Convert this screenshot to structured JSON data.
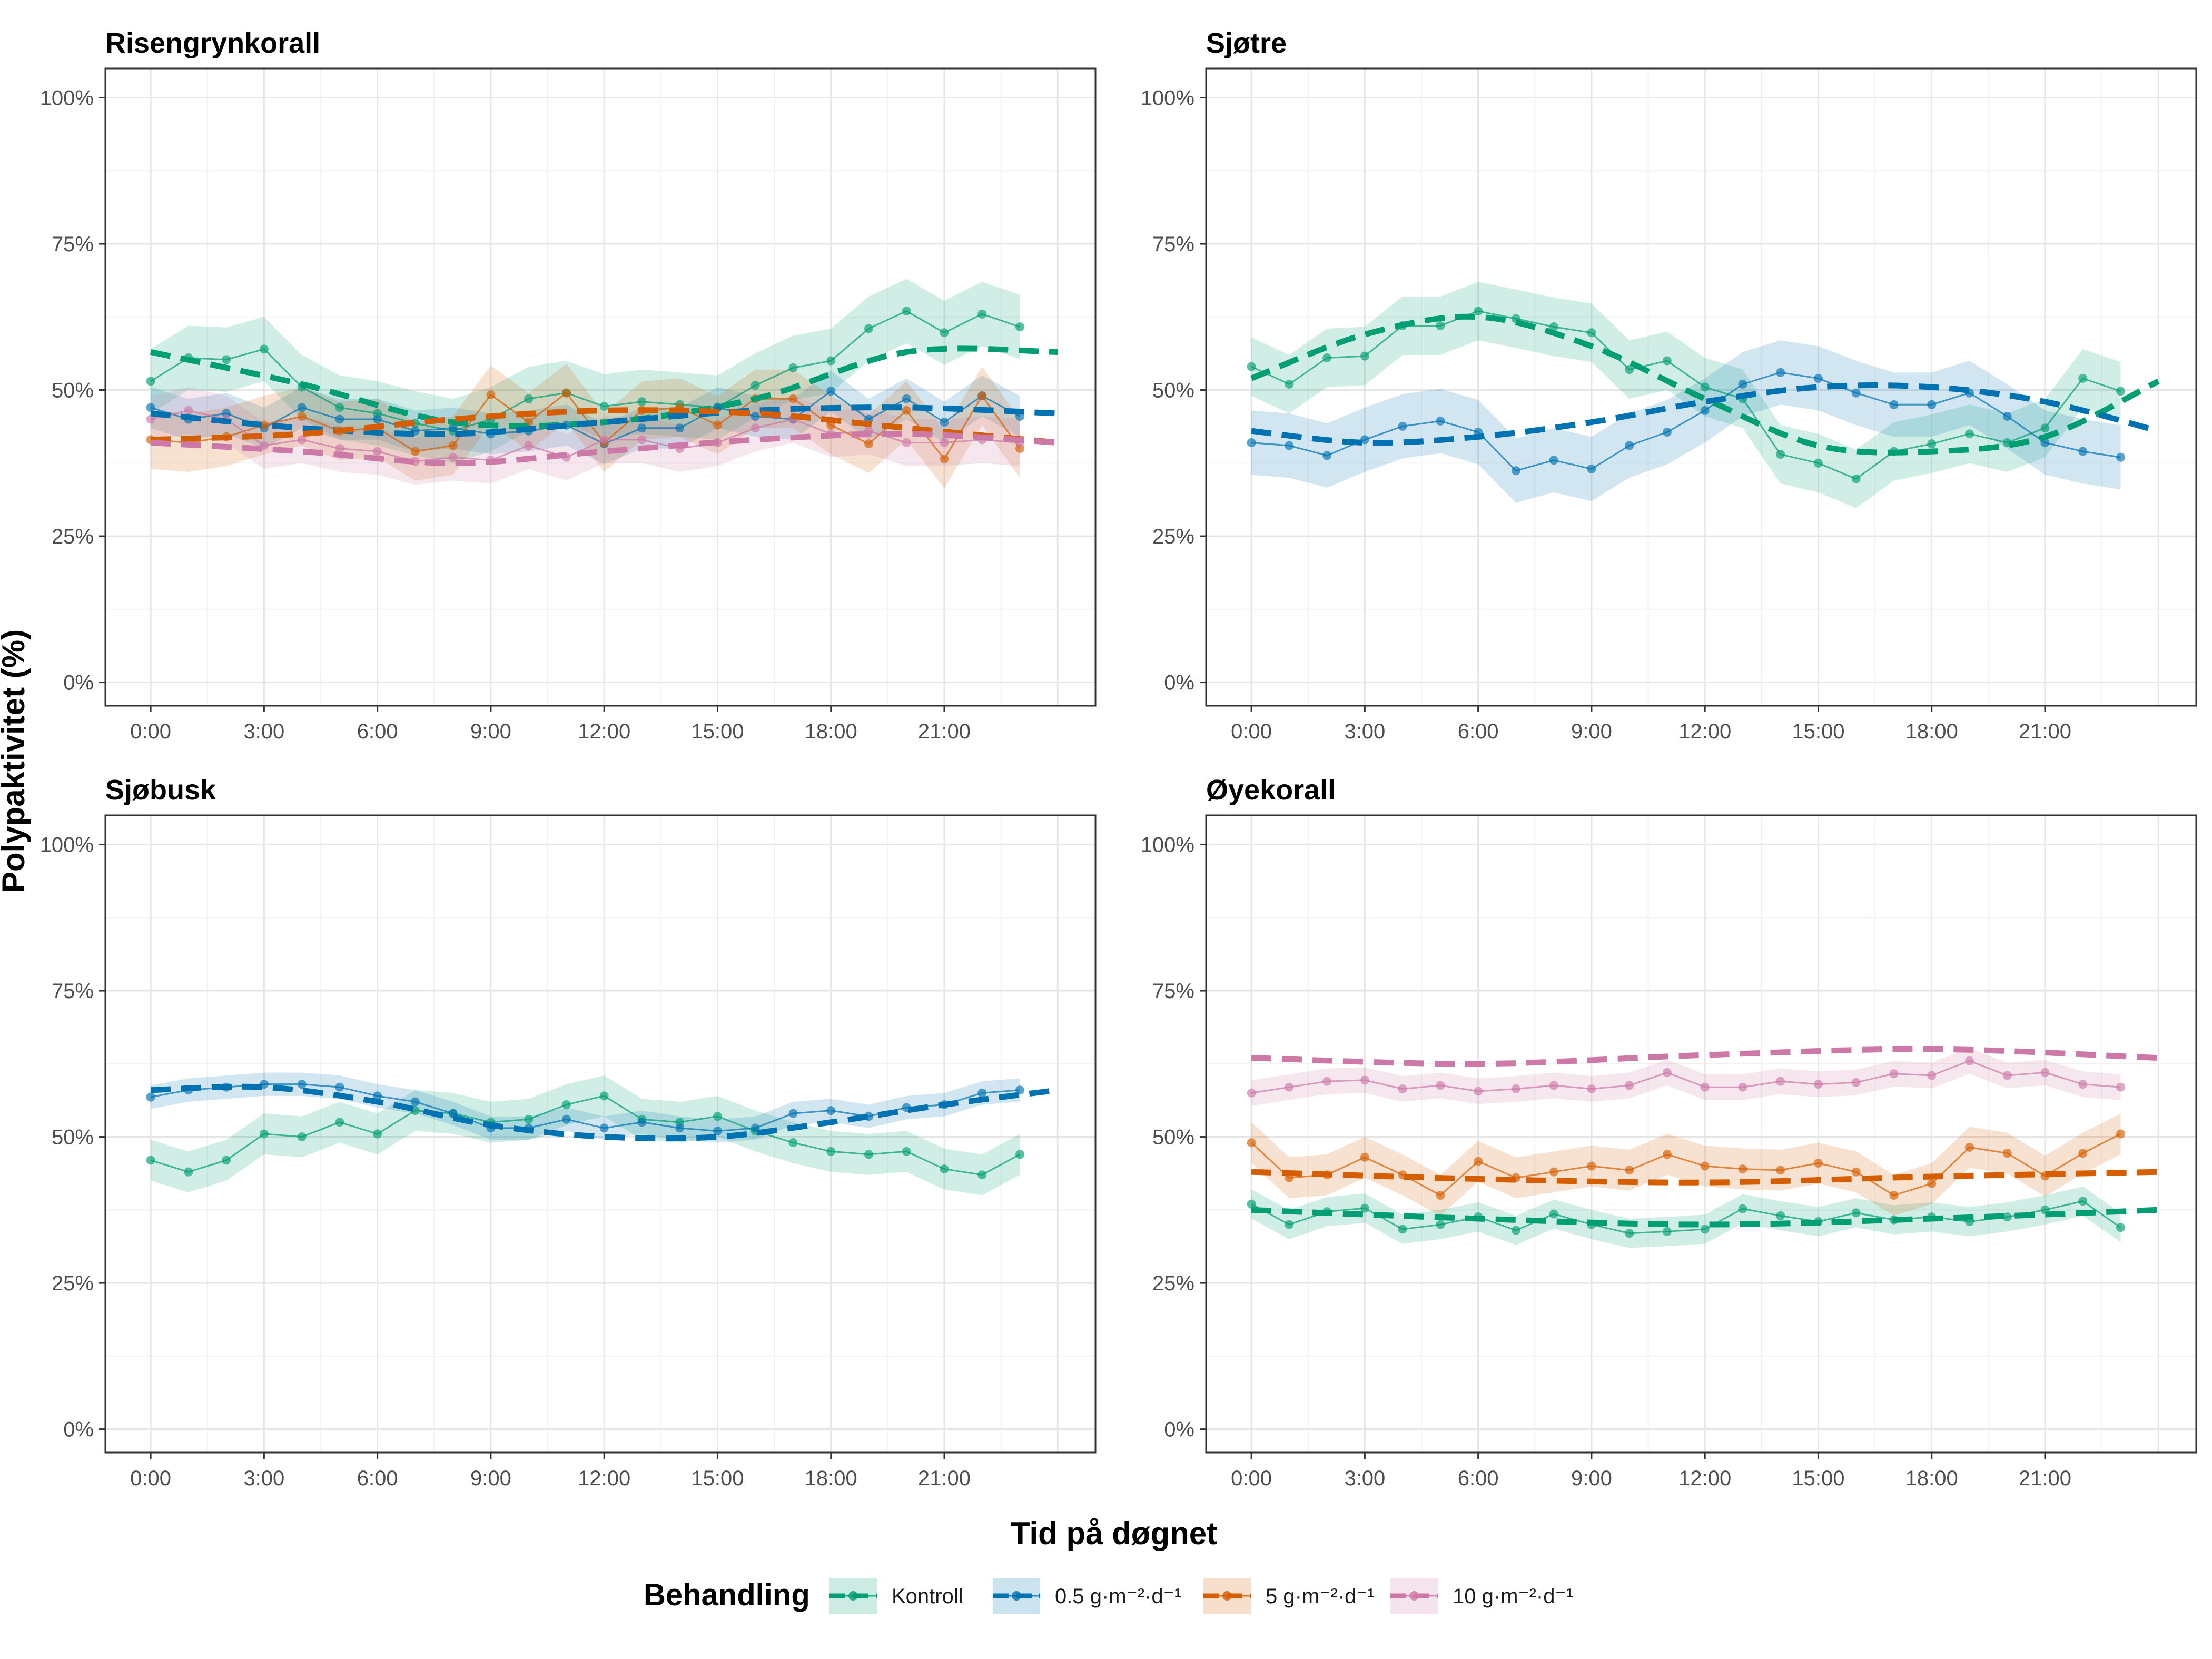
{
  "figure": {
    "x_axis_title": "Tid på døgnet",
    "y_axis_title": "Polypaktivitet (%)"
  },
  "legend": {
    "title": "Behandling",
    "items": [
      {
        "key": "kontroll",
        "label": "Kontroll",
        "color": "#009E73"
      },
      {
        "key": "t05",
        "label": "0.5 g·m⁻²·d⁻¹",
        "color": "#0072B2"
      },
      {
        "key": "t5",
        "label": "5 g·m⁻²·d⁻¹",
        "color": "#D55E00"
      },
      {
        "key": "t10",
        "label": "10 g·m⁻²·d⁻¹",
        "color": "#CC79A7"
      }
    ]
  },
  "chart_data": [
    {
      "type": "line",
      "title": "Risengrynkorall",
      "xlabel": "Tid på døgnet",
      "ylabel": "Polypaktivitet (%)",
      "xlim": [
        -1.2,
        25
      ],
      "ylim": [
        -4,
        105
      ],
      "x_ticks": [
        "0:00",
        "3:00",
        "6:00",
        "9:00",
        "12:00",
        "15:00",
        "18:00",
        "21:00"
      ],
      "y_ticks": [
        "0%",
        "25%",
        "50%",
        "75%",
        "100%"
      ],
      "x": [
        0,
        1,
        2,
        3,
        4,
        5,
        6,
        7,
        8,
        9,
        10,
        11,
        12,
        13,
        14,
        15,
        16,
        17,
        18,
        19,
        20,
        21,
        22,
        23
      ],
      "series": [
        {
          "key": "kontroll",
          "name": "Kontroll",
          "values": [
            51.5,
            55.5,
            55.2,
            57,
            50.5,
            47,
            46,
            44.3,
            43,
            45,
            48.5,
            49.5,
            47.2,
            48,
            47.5,
            47,
            50.8,
            53.8,
            55,
            60.5,
            63.5,
            59.8,
            63,
            60.8
          ],
          "band": 5.5,
          "fit_x": [
            0,
            4,
            8,
            12,
            16,
            20,
            24
          ],
          "fit": [
            56.5,
            51,
            44.5,
            44.5,
            48.5,
            56.5,
            56.5
          ]
        },
        {
          "key": "t05",
          "name": "0.5 g·m⁻²·d⁻¹",
          "values": [
            47,
            45,
            46,
            43.5,
            47,
            45,
            45,
            43,
            43.5,
            42.5,
            43,
            44,
            40.8,
            43.5,
            43.5,
            47,
            45.5,
            45,
            49.8,
            45,
            48.5,
            44.5,
            49,
            45.5
          ],
          "band": 3.5,
          "fit_x": [
            0,
            4,
            8,
            12,
            16,
            20,
            24
          ],
          "fit": [
            46,
            43.5,
            42.5,
            44.5,
            46.5,
            47,
            46
          ]
        },
        {
          "key": "t5",
          "name": "5 g·m⁻²·d⁻¹",
          "values": [
            41.5,
            41,
            42,
            44,
            45.5,
            43,
            43.5,
            39.5,
            40.5,
            49.2,
            44.5,
            49.5,
            41,
            46.5,
            47,
            44,
            48.5,
            48.5,
            44,
            40.8,
            46.5,
            38.2,
            49,
            40
          ],
          "band": 5,
          "fit_x": [
            0,
            4,
            8,
            12,
            16,
            20,
            24
          ],
          "fit": [
            41.5,
            42.5,
            45,
            46.5,
            46,
            43.5,
            41
          ]
        },
        {
          "key": "t10",
          "name": "10 g·m⁻²·d⁻¹",
          "values": [
            45,
            46.5,
            45,
            40.5,
            41.5,
            40,
            39.5,
            37.8,
            38.5,
            38,
            40.5,
            38.5,
            41.5,
            41.5,
            40,
            41,
            43.5,
            45,
            42.5,
            43,
            41,
            41,
            41.5,
            41
          ],
          "band": 4,
          "fit_x": [
            0,
            4,
            8,
            12,
            16,
            20,
            24
          ],
          "fit": [
            41,
            39.5,
            37.5,
            39.5,
            41.5,
            42.5,
            41
          ]
        }
      ]
    },
    {
      "type": "line",
      "title": "Sjøtre",
      "xlabel": "Tid på døgnet",
      "ylabel": "Polypaktivitet (%)",
      "xlim": [
        -1.2,
        25
      ],
      "ylim": [
        -4,
        105
      ],
      "x_ticks": [
        "0:00",
        "3:00",
        "6:00",
        "9:00",
        "12:00",
        "15:00",
        "18:00",
        "21:00"
      ],
      "y_ticks": [
        "0%",
        "25%",
        "50%",
        "75%",
        "100%"
      ],
      "x": [
        0,
        1,
        2,
        3,
        4,
        5,
        6,
        7,
        8,
        9,
        10,
        11,
        12,
        13,
        14,
        15,
        16,
        17,
        18,
        19,
        20,
        21,
        22,
        23
      ],
      "series": [
        {
          "key": "kontroll",
          "name": "Kontroll",
          "values": [
            54,
            51,
            55.5,
            55.8,
            61,
            61,
            63.5,
            62.2,
            60.8,
            59.8,
            53.5,
            55,
            50.5,
            48.5,
            39,
            37.5,
            34.8,
            39.5,
            40.8,
            42.5,
            41,
            43.5,
            52,
            49.8
          ],
          "band": 5,
          "fit_x": [
            0,
            3,
            6,
            9,
            12,
            15,
            18,
            21,
            24
          ],
          "fit": [
            52,
            59.5,
            62.5,
            57.5,
            48.5,
            40.5,
            39.5,
            42,
            51.5
          ]
        },
        {
          "key": "t05",
          "name": "0.5 g·m⁻²·d⁻¹",
          "values": [
            41,
            40.5,
            38.8,
            41.5,
            43.8,
            44.7,
            42.8,
            36.2,
            38,
            36.5,
            40.5,
            42.8,
            46.5,
            51,
            53,
            52,
            49.5,
            47.5,
            47.5,
            49.5,
            45.5,
            41,
            39.5,
            38.5
          ],
          "band": 5.5,
          "fit_x": [
            0,
            3,
            6,
            9,
            12,
            15,
            18,
            21,
            24
          ],
          "fit": [
            43,
            41,
            42,
            44.5,
            48,
            50.5,
            50.5,
            48,
            43
          ]
        }
      ]
    },
    {
      "type": "line",
      "title": "Sjøbusk",
      "xlabel": "Tid på døgnet",
      "ylabel": "Polypaktivitet (%)",
      "xlim": [
        -1.2,
        25
      ],
      "ylim": [
        -4,
        105
      ],
      "x_ticks": [
        "0:00",
        "3:00",
        "6:00",
        "9:00",
        "12:00",
        "15:00",
        "18:00",
        "21:00"
      ],
      "y_ticks": [
        "0%",
        "25%",
        "50%",
        "75%",
        "100%"
      ],
      "x": [
        0,
        1,
        2,
        3,
        4,
        5,
        6,
        7,
        8,
        9,
        10,
        11,
        12,
        13,
        14,
        15,
        16,
        17,
        18,
        19,
        20,
        21,
        22,
        23
      ],
      "series": [
        {
          "key": "kontroll",
          "name": "Kontroll",
          "values": [
            46,
            44,
            46,
            50.5,
            50,
            52.5,
            50.5,
            54.5,
            54,
            52.5,
            53,
            55.5,
            57,
            53,
            52.5,
            53.5,
            51,
            49,
            47.5,
            47,
            47.5,
            44.5,
            43.5,
            47
          ],
          "band": 3.5,
          "fit_x": [],
          "fit": []
        },
        {
          "key": "t05",
          "name": "0.5 g·m⁻²·d⁻¹",
          "values": [
            56.8,
            58,
            58.5,
            59,
            59,
            58.5,
            57,
            56,
            54,
            51.5,
            51.5,
            53,
            51.5,
            52.5,
            51.5,
            51,
            51.5,
            54,
            54.5,
            53.5,
            55,
            55.5,
            57.5,
            58
          ],
          "band": 2,
          "fit_x": [
            0,
            3,
            6,
            9,
            12,
            15,
            18,
            21,
            24
          ],
          "fit": [
            58,
            58.5,
            56,
            52,
            50,
            50,
            52.5,
            55.5,
            58
          ]
        }
      ]
    },
    {
      "type": "line",
      "title": "Øyekorall",
      "xlabel": "Tid på døgnet",
      "ylabel": "Polypaktivitet (%)",
      "xlim": [
        -1.2,
        25
      ],
      "ylim": [
        -4,
        105
      ],
      "x_ticks": [
        "0:00",
        "3:00",
        "6:00",
        "9:00",
        "12:00",
        "15:00",
        "18:00",
        "21:00"
      ],
      "y_ticks": [
        "0%",
        "25%",
        "50%",
        "75%",
        "100%"
      ],
      "x": [
        0,
        1,
        2,
        3,
        4,
        5,
        6,
        7,
        8,
        9,
        10,
        11,
        12,
        13,
        14,
        15,
        16,
        17,
        18,
        19,
        20,
        21,
        22,
        23
      ],
      "series": [
        {
          "key": "kontroll",
          "name": "Kontroll",
          "values": [
            38.5,
            35,
            37.2,
            37.8,
            34.2,
            35,
            36.3,
            34,
            36.8,
            35,
            33.5,
            33.8,
            34.2,
            37.7,
            36.5,
            35.5,
            37,
            35.8,
            36.3,
            35.5,
            36.3,
            37.5,
            39,
            34.5
          ],
          "band": 2.5,
          "fit_x": [
            0,
            6,
            12,
            18,
            24
          ],
          "fit": [
            37.5,
            36,
            35,
            36,
            37.5
          ]
        },
        {
          "key": "t5",
          "name": "5 g·m⁻²·d⁻¹",
          "values": [
            49,
            43,
            43.5,
            46.5,
            43.5,
            40,
            45.8,
            43,
            44,
            45,
            44.3,
            47,
            45,
            44.5,
            44.3,
            45.5,
            44,
            40,
            42,
            48.2,
            47.2,
            43.3,
            47.2,
            50.5
          ],
          "band": 3.5,
          "fit_x": [
            0,
            6,
            12,
            18,
            24
          ],
          "fit": [
            44,
            42.8,
            42.2,
            43.2,
            44
          ]
        },
        {
          "key": "t10",
          "name": "10 g·m⁻²·d⁻¹",
          "values": [
            57.5,
            58.5,
            59.5,
            59.7,
            58.2,
            58.8,
            57.8,
            58.2,
            58.8,
            58.2,
            58.8,
            61,
            58.5,
            58.5,
            59.5,
            59,
            59.3,
            60.8,
            60.5,
            63,
            60.5,
            61,
            59,
            58.5
          ],
          "band": 2.2,
          "fit_x": [
            0,
            6,
            12,
            18,
            24
          ],
          "fit": [
            63.5,
            62.5,
            64,
            65,
            63.5
          ]
        }
      ]
    }
  ]
}
